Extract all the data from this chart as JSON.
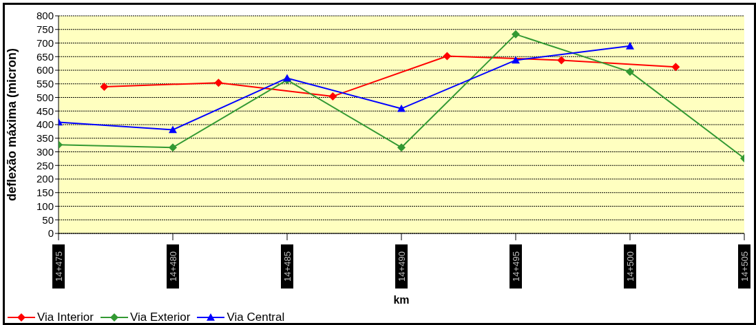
{
  "chart_data": {
    "type": "line",
    "xlabel": "km",
    "ylabel": "deflexão máxima (micron)",
    "categories": [
      "14+475",
      null,
      null,
      null,
      null,
      "14+480",
      null,
      null,
      null,
      null,
      "14+485",
      null,
      null,
      null,
      null,
      "14+490",
      null,
      null,
      null,
      null,
      "14+495",
      null,
      null,
      null,
      null,
      "14+500",
      null,
      null,
      null,
      null,
      "14+505"
    ],
    "ylim": [
      0,
      800
    ],
    "yticks": [
      0,
      50,
      100,
      150,
      200,
      250,
      300,
      350,
      400,
      450,
      500,
      550,
      600,
      650,
      700,
      750,
      800
    ],
    "grid": "y",
    "legend": "bottom left",
    "series": [
      {
        "name": "Via Interior",
        "color": "#ff0000",
        "marker": "diamond",
        "values": [
          null,
          null,
          539,
          null,
          null,
          null,
          null,
          554,
          null,
          null,
          null,
          null,
          504,
          null,
          null,
          null,
          null,
          652,
          null,
          null,
          null,
          null,
          637,
          null,
          null,
          null,
          null,
          612,
          null,
          null,
          null
        ]
      },
      {
        "name": "Via Exterior",
        "color": "#339933",
        "marker": "diamond",
        "values": [
          326,
          null,
          null,
          null,
          null,
          316,
          null,
          null,
          null,
          null,
          564,
          null,
          null,
          null,
          null,
          316,
          null,
          null,
          null,
          null,
          732,
          null,
          null,
          null,
          null,
          594,
          null,
          null,
          null,
          null,
          276
        ]
      },
      {
        "name": "Via Central",
        "color": "#0000ff",
        "marker": "triangle",
        "values": [
          409,
          null,
          null,
          null,
          null,
          381,
          null,
          null,
          null,
          null,
          571,
          null,
          null,
          null,
          null,
          459,
          null,
          null,
          null,
          null,
          637,
          null,
          null,
          null,
          null,
          689,
          null,
          null,
          null,
          null,
          null
        ]
      }
    ]
  }
}
